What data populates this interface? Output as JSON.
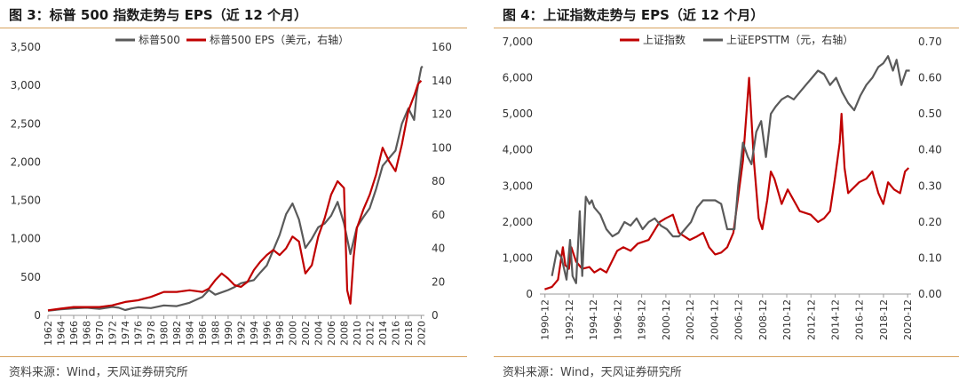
{
  "left_panel": {
    "title": "图 3：标普 500 指数走势与 EPS（近 12 个月）",
    "source": "资料来源：Wind，天风证券研究所"
  },
  "right_panel": {
    "title": "图 4：上证指数走势与 EPS（近 12 个月）",
    "source": "资料来源：Wind，天风证券研究所"
  },
  "chart_data": [
    {
      "type": "line",
      "title": "标普 500 指数走势与 EPS（近 12 个月）",
      "xlabel": "",
      "ylabel": "",
      "y2label": "",
      "categories": [
        "1962",
        "1964",
        "1966",
        "1968",
        "1970",
        "1972",
        "1974",
        "1976",
        "1978",
        "1980",
        "1982",
        "1984",
        "1986",
        "1988",
        "1990",
        "1992",
        "1994",
        "1996",
        "1998",
        "2000",
        "2002",
        "2004",
        "2006",
        "2008",
        "2010",
        "2012",
        "2014",
        "2016",
        "2018",
        "2020"
      ],
      "xlim": [
        1962,
        2020.5
      ],
      "y_left": {
        "lim": [
          0,
          3500
        ],
        "ticks": [
          0,
          500,
          1000,
          1500,
          2000,
          2500,
          3000,
          3500
        ],
        "tick_labels": [
          "0",
          "500",
          "1,000",
          "1,500",
          "2,000",
          "2,500",
          "3,000",
          "3,500"
        ]
      },
      "y_right": {
        "lim": [
          0,
          160
        ],
        "ticks": [
          0,
          20,
          40,
          60,
          80,
          100,
          120,
          140,
          160
        ],
        "tick_labels": [
          "0",
          "20",
          "40",
          "60",
          "80",
          "100",
          "120",
          "140",
          "160"
        ]
      },
      "legend_position": "top",
      "grid": false,
      "series": [
        {
          "name": "标普500",
          "axis": "left",
          "color": "#5a5a5a",
          "x": [
            1962,
            1964,
            1966,
            1968,
            1970,
            1972,
            1973,
            1974,
            1975,
            1976,
            1978,
            1980,
            1982,
            1984,
            1986,
            1987,
            1988,
            1990,
            1991,
            1992,
            1994,
            1995,
            1996,
            1997,
            1998,
            1999,
            2000,
            2001,
            2002,
            2003,
            2004,
            2005,
            2006,
            2007,
            2008,
            2009,
            2010,
            2011,
            2012,
            2013,
            2014,
            2015,
            2016,
            2017,
            2018,
            2018.9,
            2019.3,
            2019.7,
            2020,
            2020.2
          ],
          "y": [
            60,
            80,
            90,
            100,
            85,
            110,
            100,
            70,
            90,
            105,
            95,
            130,
            120,
            165,
            240,
            330,
            270,
            330,
            370,
            420,
            460,
            560,
            650,
            850,
            1050,
            1320,
            1460,
            1250,
            880,
            1000,
            1150,
            1200,
            1300,
            1480,
            1200,
            800,
            1150,
            1280,
            1400,
            1650,
            1950,
            2050,
            2150,
            2500,
            2700,
            2550,
            2900,
            3100,
            3230,
            3250
          ]
        },
        {
          "name": "标普500 EPS（美元，右轴）",
          "axis": "right",
          "color": "#c00000",
          "x": [
            1962,
            1964,
            1966,
            1968,
            1970,
            1972,
            1974,
            1976,
            1978,
            1980,
            1982,
            1984,
            1986,
            1987,
            1988,
            1989,
            1990,
            1991,
            1992,
            1993,
            1994,
            1995,
            1996,
            1997,
            1998,
            1999,
            2000,
            2001,
            2002,
            2003,
            2004,
            2005,
            2006,
            2007,
            2008,
            2008.5,
            2009,
            2009.5,
            2010,
            2011,
            2012,
            2013,
            2014,
            2015,
            2016,
            2017,
            2018,
            2019,
            2019.5,
            2020
          ],
          "y": [
            3,
            4,
            5,
            5,
            5,
            6,
            8,
            9,
            11,
            14,
            14,
            15,
            14,
            16,
            21,
            25,
            22,
            18,
            17,
            20,
            27,
            32,
            36,
            39,
            36,
            40,
            47,
            44,
            25,
            30,
            47,
            58,
            72,
            80,
            76,
            15,
            7,
            35,
            52,
            63,
            72,
            84,
            100,
            92,
            86,
            102,
            122,
            132,
            138,
            140
          ]
        }
      ]
    },
    {
      "type": "line",
      "title": "上证指数走势与 EPS（近 12 个月）",
      "xlabel": "",
      "ylabel": "",
      "y2label": "",
      "categories": [
        "1990-12",
        "1992-12",
        "1994-12",
        "1996-12",
        "1998-12",
        "2000-12",
        "2002-12",
        "2004-12",
        "2006-12",
        "2008-12",
        "2010-12",
        "2012-12",
        "2014-12",
        "2016-12",
        "2018-12",
        "2020-12"
      ],
      "xlim": [
        1990.5,
        2021.2
      ],
      "y_left": {
        "lim": [
          0,
          7000
        ],
        "ticks": [
          0,
          1000,
          2000,
          3000,
          4000,
          5000,
          6000,
          7000
        ],
        "tick_labels": [
          "0",
          "1,000",
          "2,000",
          "3,000",
          "4,000",
          "5,000",
          "6,000",
          "7,000"
        ]
      },
      "y_right": {
        "lim": [
          0,
          0.7
        ],
        "ticks": [
          0,
          0.1,
          0.2,
          0.3,
          0.4,
          0.5,
          0.6,
          0.7
        ],
        "tick_labels": [
          "0.00",
          "0.10",
          "0.20",
          "0.30",
          "0.40",
          "0.50",
          "0.60",
          "0.70"
        ]
      },
      "legend_position": "top",
      "grid": false,
      "series": [
        {
          "name": "上证指数",
          "axis": "left",
          "color": "#c00000",
          "x": [
            1990.9,
            1991.5,
            1992.0,
            1992.4,
            1992.6,
            1992.9,
            1993.1,
            1993.5,
            1994.0,
            1994.6,
            1995.0,
            1995.5,
            1996.0,
            1996.9,
            1997.4,
            1998.0,
            1998.6,
            1999.5,
            2000.4,
            2000.9,
            2001.5,
            2002.0,
            2002.9,
            2003.5,
            2004.0,
            2004.5,
            2005.0,
            2005.5,
            2006.0,
            2006.5,
            2006.9,
            2007.3,
            2007.8,
            2008.2,
            2008.6,
            2008.9,
            2009.3,
            2009.6,
            2009.9,
            2010.5,
            2011.0,
            2011.5,
            2012.0,
            2012.9,
            2013.5,
            2014.0,
            2014.5,
            2014.9,
            2015.3,
            2015.45,
            2015.7,
            2016.0,
            2016.9,
            2017.5,
            2018.0,
            2018.5,
            2018.9,
            2019.3,
            2019.8,
            2020.3,
            2020.7,
            2021.0
          ],
          "y": [
            130,
            200,
            400,
            1300,
            800,
            700,
            1300,
            900,
            700,
            750,
            600,
            700,
            600,
            1200,
            1300,
            1200,
            1400,
            1500,
            2000,
            2100,
            2200,
            1700,
            1500,
            1600,
            1700,
            1300,
            1100,
            1150,
            1300,
            1700,
            2700,
            3700,
            6000,
            3700,
            2100,
            1800,
            2600,
            3400,
            3200,
            2500,
            2900,
            2600,
            2300,
            2200,
            2000,
            2100,
            2300,
            3200,
            4200,
            5000,
            3500,
            2800,
            3100,
            3200,
            3400,
            2800,
            2500,
            3100,
            2900,
            2800,
            3400,
            3500
          ]
        },
        {
          "name": "上证EPSTTM（元，右轴）",
          "axis": "right",
          "color": "#5a5a5a",
          "x": [
            1991.5,
            1991.9,
            1992.3,
            1992.7,
            1993.0,
            1993.2,
            1993.5,
            1993.8,
            1994.0,
            1994.3,
            1994.6,
            1994.8,
            1995.0,
            1995.5,
            1996.0,
            1996.5,
            1997.0,
            1997.5,
            1998.0,
            1998.5,
            1999.0,
            1999.5,
            2000.0,
            2000.5,
            2001.0,
            2001.5,
            2002.0,
            2002.5,
            2003.0,
            2003.5,
            2004.0,
            2004.5,
            2005.0,
            2005.5,
            2006.0,
            2006.4,
            2006.6,
            2006.9,
            2007.3,
            2007.7,
            2008.0,
            2008.4,
            2008.8,
            2009.2,
            2009.6,
            2010.0,
            2010.5,
            2011.0,
            2011.5,
            2012.0,
            2012.5,
            2013.0,
            2013.5,
            2014.0,
            2014.5,
            2015.0,
            2015.5,
            2016.0,
            2016.5,
            2017.0,
            2017.5,
            2018.0,
            2018.5,
            2018.9,
            2019.3,
            2019.7,
            2020.0,
            2020.4,
            2020.8,
            2021.1
          ],
          "y": [
            0.05,
            0.12,
            0.1,
            0.04,
            0.15,
            0.05,
            0.03,
            0.23,
            0.05,
            0.27,
            0.25,
            0.26,
            0.24,
            0.22,
            0.18,
            0.16,
            0.17,
            0.2,
            0.19,
            0.21,
            0.18,
            0.2,
            0.21,
            0.19,
            0.18,
            0.16,
            0.16,
            0.18,
            0.2,
            0.24,
            0.26,
            0.26,
            0.26,
            0.25,
            0.18,
            0.18,
            0.18,
            0.3,
            0.42,
            0.38,
            0.36,
            0.45,
            0.48,
            0.38,
            0.5,
            0.52,
            0.54,
            0.55,
            0.54,
            0.56,
            0.58,
            0.6,
            0.62,
            0.61,
            0.58,
            0.6,
            0.56,
            0.53,
            0.51,
            0.55,
            0.58,
            0.6,
            0.63,
            0.64,
            0.66,
            0.62,
            0.65,
            0.58,
            0.62,
            0.62
          ]
        }
      ]
    }
  ]
}
